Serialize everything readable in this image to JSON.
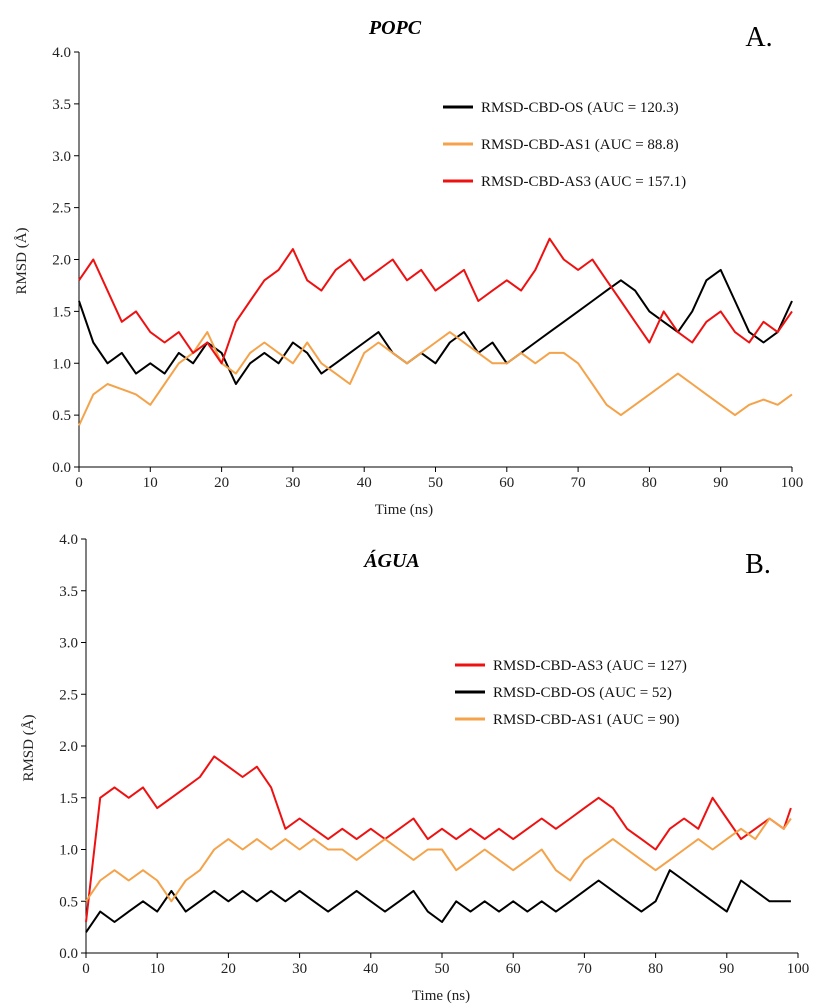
{
  "colors": {
    "black": "#000000",
    "orange": "#f4a34a",
    "red": "#ee1111"
  },
  "chart_data": [
    {
      "type": "line",
      "title": "POPC",
      "panel_label": "A.",
      "xlabel": "Time (ns)",
      "ylabel": "RMSD (Å)",
      "xlim": [
        0,
        100
      ],
      "ylim": [
        0,
        4.0
      ],
      "xticks": [
        "0",
        "10",
        "20",
        "30",
        "40",
        "50",
        "60",
        "70",
        "80",
        "90",
        "100"
      ],
      "yticks": [
        "0.0",
        "0.5",
        "1.0",
        "1.5",
        "2.0",
        "2.5",
        "3.0",
        "3.5",
        "4.0"
      ],
      "grid": false,
      "legend_position": "top-right",
      "x": [
        0,
        2,
        4,
        6,
        8,
        10,
        12,
        14,
        16,
        18,
        20,
        22,
        24,
        26,
        28,
        30,
        32,
        34,
        36,
        38,
        40,
        42,
        44,
        46,
        48,
        50,
        52,
        54,
        56,
        58,
        60,
        62,
        64,
        66,
        68,
        70,
        72,
        74,
        76,
        78,
        80,
        82,
        84,
        86,
        88,
        90,
        92,
        94,
        96,
        98,
        100
      ],
      "series": [
        {
          "name": "RMSD-CBD-OS (AUC = 120.3)",
          "color": "#000000",
          "values": [
            1.6,
            1.2,
            1.0,
            1.1,
            0.9,
            1.0,
            0.9,
            1.1,
            1.0,
            1.2,
            1.1,
            0.8,
            1.0,
            1.1,
            1.0,
            1.2,
            1.1,
            0.9,
            1.0,
            1.1,
            1.2,
            1.3,
            1.1,
            1.0,
            1.1,
            1.0,
            1.2,
            1.3,
            1.1,
            1.2,
            1.0,
            1.1,
            1.2,
            1.3,
            1.4,
            1.5,
            1.6,
            1.7,
            1.8,
            1.7,
            1.5,
            1.4,
            1.3,
            1.5,
            1.8,
            1.9,
            1.6,
            1.3,
            1.2,
            1.3,
            1.6
          ]
        },
        {
          "name": "RMSD-CBD-AS1 (AUC = 88.8)",
          "color": "#f4a34a",
          "values": [
            0.4,
            0.7,
            0.8,
            0.75,
            0.7,
            0.6,
            0.8,
            1.0,
            1.1,
            1.3,
            1.0,
            0.9,
            1.1,
            1.2,
            1.1,
            1.0,
            1.2,
            1.0,
            0.9,
            0.8,
            1.1,
            1.2,
            1.1,
            1.0,
            1.1,
            1.2,
            1.3,
            1.2,
            1.1,
            1.0,
            1.0,
            1.1,
            1.0,
            1.1,
            1.1,
            1.0,
            0.8,
            0.6,
            0.5,
            0.6,
            0.7,
            0.8,
            0.9,
            0.8,
            0.7,
            0.6,
            0.5,
            0.6,
            0.65,
            0.6,
            0.7
          ]
        },
        {
          "name": "RMSD-CBD-AS3 (AUC = 157.1)",
          "color": "#ee1111",
          "values": [
            1.8,
            2.0,
            1.7,
            1.4,
            1.5,
            1.3,
            1.2,
            1.3,
            1.1,
            1.2,
            1.0,
            1.4,
            1.6,
            1.8,
            1.9,
            2.1,
            1.8,
            1.7,
            1.9,
            2.0,
            1.8,
            1.9,
            2.0,
            1.8,
            1.9,
            1.7,
            1.8,
            1.9,
            1.6,
            1.7,
            1.8,
            1.7,
            1.9,
            2.2,
            2.0,
            1.9,
            2.0,
            1.8,
            1.6,
            1.4,
            1.2,
            1.5,
            1.3,
            1.2,
            1.4,
            1.5,
            1.3,
            1.2,
            1.4,
            1.3,
            1.5
          ]
        }
      ]
    },
    {
      "type": "line",
      "title": "ÁGUA",
      "panel_label": "B.",
      "xlabel": "Time (ns)",
      "ylabel": "RMSD (Å)",
      "xlim": [
        0,
        100
      ],
      "ylim": [
        0,
        4.0
      ],
      "xticks": [
        "0",
        "10",
        "20",
        "30",
        "40",
        "50",
        "60",
        "70",
        "80",
        "90",
        "100"
      ],
      "yticks": [
        "0.0",
        "0.5",
        "1.0",
        "1.5",
        "2.0",
        "2.5",
        "3.0",
        "3.5",
        "4.0"
      ],
      "grid": false,
      "legend_position": "middle-right",
      "x": [
        0,
        2,
        4,
        6,
        8,
        10,
        12,
        14,
        16,
        18,
        20,
        22,
        24,
        26,
        28,
        30,
        32,
        34,
        36,
        38,
        40,
        42,
        44,
        46,
        48,
        50,
        52,
        54,
        56,
        58,
        60,
        62,
        64,
        66,
        68,
        70,
        72,
        74,
        76,
        78,
        80,
        82,
        84,
        86,
        88,
        90,
        92,
        94,
        96,
        98,
        99
      ],
      "series": [
        {
          "name": "RMSD-CBD-AS3 (AUC = 127)",
          "color": "#ee1111",
          "values": [
            0.3,
            1.5,
            1.6,
            1.5,
            1.6,
            1.4,
            1.5,
            1.6,
            1.7,
            1.9,
            1.8,
            1.7,
            1.8,
            1.6,
            1.2,
            1.3,
            1.2,
            1.1,
            1.2,
            1.1,
            1.2,
            1.1,
            1.2,
            1.3,
            1.1,
            1.2,
            1.1,
            1.2,
            1.1,
            1.2,
            1.1,
            1.2,
            1.3,
            1.2,
            1.3,
            1.4,
            1.5,
            1.4,
            1.2,
            1.1,
            1.0,
            1.2,
            1.3,
            1.2,
            1.5,
            1.3,
            1.1,
            1.2,
            1.3,
            1.2,
            1.4
          ]
        },
        {
          "name": "RMSD-CBD-OS (AUC = 52)",
          "color": "#000000",
          "values": [
            0.2,
            0.4,
            0.3,
            0.4,
            0.5,
            0.4,
            0.6,
            0.4,
            0.5,
            0.6,
            0.5,
            0.6,
            0.5,
            0.6,
            0.5,
            0.6,
            0.5,
            0.4,
            0.5,
            0.6,
            0.5,
            0.4,
            0.5,
            0.6,
            0.4,
            0.3,
            0.5,
            0.4,
            0.5,
            0.4,
            0.5,
            0.4,
            0.5,
            0.4,
            0.5,
            0.6,
            0.7,
            0.6,
            0.5,
            0.4,
            0.5,
            0.8,
            0.7,
            0.6,
            0.5,
            0.4,
            0.7,
            0.6,
            0.5,
            0.5,
            0.5
          ]
        },
        {
          "name": "RMSD-CBD-AS1 (AUC = 90)",
          "color": "#f4a34a",
          "values": [
            0.5,
            0.7,
            0.8,
            0.7,
            0.8,
            0.7,
            0.5,
            0.7,
            0.8,
            1.0,
            1.1,
            1.0,
            1.1,
            1.0,
            1.1,
            1.0,
            1.1,
            1.0,
            1.0,
            0.9,
            1.0,
            1.1,
            1.0,
            0.9,
            1.0,
            1.0,
            0.8,
            0.9,
            1.0,
            0.9,
            0.8,
            0.9,
            1.0,
            0.8,
            0.7,
            0.9,
            1.0,
            1.1,
            1.0,
            0.9,
            0.8,
            0.9,
            1.0,
            1.1,
            1.0,
            1.1,
            1.2,
            1.1,
            1.3,
            1.2,
            1.3
          ]
        }
      ]
    }
  ]
}
